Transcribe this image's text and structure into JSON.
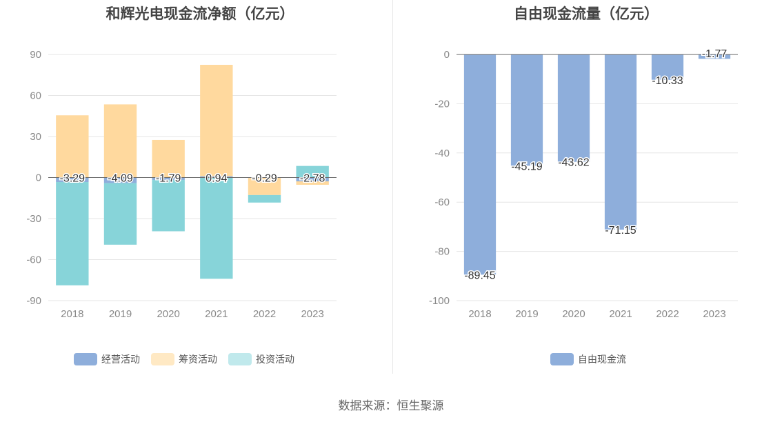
{
  "footer": {
    "source": "数据来源：恒生聚源"
  },
  "colors": {
    "operating": "#8eaedb",
    "financing": "#ffd99e",
    "investing": "#87d4d9",
    "legend_financing": "#ffe9c4",
    "legend_investing": "#c0e9ec",
    "free_cash_flow": "#8eaedb"
  },
  "chart_data": [
    {
      "type": "bar",
      "title": "和辉光电现金流净额（亿元）",
      "categories": [
        "2018",
        "2019",
        "2020",
        "2021",
        "2022",
        "2023"
      ],
      "ylim": [
        -90,
        90
      ],
      "yticks": [
        90,
        60,
        30,
        0,
        -30,
        -60,
        -90
      ],
      "grid": true,
      "legend_position": "bottom",
      "series": [
        {
          "name": "经营活动",
          "values": [
            -3.29,
            -4.09,
            -1.79,
            0.94,
            -0.29,
            -2.78
          ]
        },
        {
          "name": "筹资活动",
          "values": [
            45.5,
            53.5,
            27.5,
            81.5,
            -12.5,
            -2.5
          ]
        },
        {
          "name": "投资活动",
          "values": [
            -75.5,
            -45.0,
            -37.5,
            -74.0,
            -5.5,
            8.5
          ]
        }
      ],
      "data_labels": [
        "-3.29",
        "-4.09",
        "-1.79",
        "0.94",
        "-0.29",
        "-2.78"
      ]
    },
    {
      "type": "bar",
      "title": "自由现金流量（亿元）",
      "categories": [
        "2018",
        "2019",
        "2020",
        "2021",
        "2022",
        "2023"
      ],
      "ylim": [
        -100,
        0
      ],
      "yticks": [
        0,
        -20,
        -40,
        -60,
        -80,
        -100
      ],
      "grid": true,
      "legend_position": "bottom",
      "series": [
        {
          "name": "自由现金流",
          "values": [
            -89.45,
            -45.19,
            -43.62,
            -71.15,
            -10.33,
            -1.77
          ]
        }
      ],
      "data_labels": [
        "-89.45",
        "-45.19",
        "-43.62",
        "-71.15",
        "-10.33",
        "-1.77"
      ]
    }
  ]
}
